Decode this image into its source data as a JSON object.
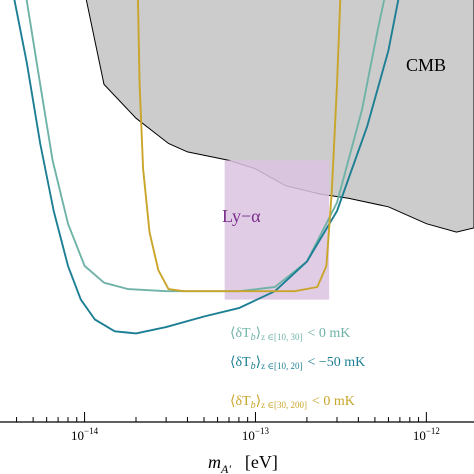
{
  "chart_data": {
    "type": "line",
    "title": "",
    "xlabel_main": "m",
    "xlabel_sub": "A'",
    "xlabel_unit": "[eV]",
    "ylabel": "",
    "xscale": "log",
    "xlim": [
      3.2e-15,
      1.9e-12
    ],
    "ylim": [
      0,
      1
    ],
    "grid": false,
    "xticks": [
      {
        "value": 1e-14,
        "base": "10",
        "exp": "−14"
      },
      {
        "value": 1e-13,
        "base": "10",
        "exp": "−13"
      },
      {
        "value": 1e-12,
        "base": "10",
        "exp": "−12"
      }
    ],
    "colors": {
      "cmb_fill": "#cccccc",
      "lya_fill": "#dcc3e2",
      "lya_label": "#7b2d8b",
      "series_teal": "#6fb3a8",
      "series_darkteal": "#1d7f94",
      "series_gold": "#c9a52a"
    },
    "regions": [
      {
        "name": "CMB",
        "label": "CMB",
        "boundary": [
          [
            3.2e-15,
            1.02
          ],
          [
            1e-14,
            1.02
          ],
          [
            1.3e-14,
            0.8
          ],
          [
            2e-14,
            0.72
          ],
          [
            3.1e-14,
            0.66
          ],
          [
            4e-14,
            0.64
          ],
          [
            7e-14,
            0.62
          ],
          [
            1e-13,
            0.6
          ],
          [
            1.5e-13,
            0.56
          ],
          [
            2.4e-13,
            0.54
          ],
          [
            3.5e-13,
            0.53
          ],
          [
            6e-13,
            0.51
          ],
          [
            1e-12,
            0.47
          ],
          [
            1.5e-12,
            0.45
          ],
          [
            1.9e-12,
            0.46
          ]
        ]
      },
      {
        "name": "Ly-alpha",
        "label": "Ly−α",
        "xrange": [
          6.6e-14,
          2.7e-13
        ],
        "yrange": [
          0.29,
          0.62
        ]
      }
    ],
    "series": [
      {
        "color": "teal",
        "legend": "⟨δT_b⟩_{z∈[10,30]} < 0 mK",
        "points": [
          [
            4.5e-15,
            1.02
          ],
          [
            5.5e-15,
            0.8
          ],
          [
            6.5e-15,
            0.62
          ],
          [
            8e-15,
            0.47
          ],
          [
            1e-14,
            0.37
          ],
          [
            1.3e-14,
            0.33
          ],
          [
            1.8e-14,
            0.315
          ],
          [
            3e-14,
            0.31
          ],
          [
            5e-14,
            0.31
          ],
          [
            8e-14,
            0.31
          ],
          [
            1.3e-13,
            0.32
          ],
          [
            2e-13,
            0.38
          ],
          [
            3e-13,
            0.52
          ],
          [
            4.2e-13,
            0.74
          ],
          [
            5.2e-13,
            0.93
          ],
          [
            5.8e-13,
            1.02
          ]
        ]
      },
      {
        "color": "darkteal",
        "legend": "⟨δT_b⟩_{z∈[10,20]} < −50 mK",
        "points": [
          [
            3.8e-15,
            1.02
          ],
          [
            4.6e-15,
            0.85
          ],
          [
            5.5e-15,
            0.66
          ],
          [
            6.6e-15,
            0.5
          ],
          [
            8e-15,
            0.37
          ],
          [
            9.5e-15,
            0.29
          ],
          [
            1.15e-14,
            0.243
          ],
          [
            1.5e-14,
            0.215
          ],
          [
            2e-14,
            0.21
          ],
          [
            3e-14,
            0.225
          ],
          [
            5e-14,
            0.25
          ],
          [
            8e-14,
            0.27
          ],
          [
            1.3e-13,
            0.31
          ],
          [
            2e-13,
            0.38
          ],
          [
            3e-13,
            0.5
          ],
          [
            4.5e-13,
            0.7
          ],
          [
            6e-13,
            0.88
          ],
          [
            7e-13,
            1.02
          ]
        ]
      },
      {
        "color": "gold",
        "legend": "⟨δT_b⟩_{z∈[30,200]} < 0 mK",
        "points": [
          [
            2.05e-14,
            1.02
          ],
          [
            2.1e-14,
            0.8
          ],
          [
            2.2e-14,
            0.6
          ],
          [
            2.4e-14,
            0.45
          ],
          [
            2.7e-14,
            0.36
          ],
          [
            3.1e-14,
            0.315
          ],
          [
            3.8e-14,
            0.31
          ],
          [
            6e-14,
            0.31
          ],
          [
            1e-13,
            0.31
          ],
          [
            1.7e-13,
            0.31
          ],
          [
            2.3e-13,
            0.32
          ],
          [
            2.6e-13,
            0.37
          ],
          [
            2.8e-13,
            0.55
          ],
          [
            3e-13,
            0.8
          ],
          [
            3.15e-13,
            1.02
          ]
        ]
      }
    ],
    "legend_entries": [
      {
        "color": "teal",
        "prefix": "⟨δT",
        "sub_b": "b",
        "close": "⟩",
        "sub_z": "z ∈[10, 30]",
        "relation": "< 0 mK"
      },
      {
        "color": "darkteal",
        "prefix": "⟨δT",
        "sub_b": "b",
        "close": "⟩",
        "sub_z": "z ∈[10, 20]",
        "relation": "< −50 mK"
      },
      {
        "color": "gold",
        "prefix": "⟨δT",
        "sub_b": "b",
        "close": "⟩",
        "sub_z": "z ∈[30, 200]",
        "relation": "< 0 mK"
      }
    ],
    "legend_placement": "bottom-right"
  }
}
